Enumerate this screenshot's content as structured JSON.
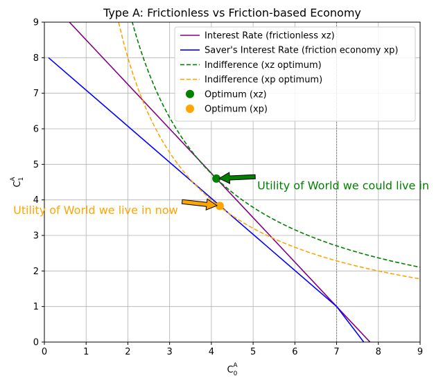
{
  "chart_data": {
    "type": "line",
    "title": "Type A: Frictionless vs Friction-based Economy",
    "xlabel_main": "C",
    "xlabel_sup": "A",
    "xlabel_sub": "0",
    "ylabel_main": "C",
    "ylabel_sup": "A",
    "ylabel_sub": "1",
    "xlim": [
      0,
      9
    ],
    "ylim": [
      0,
      9
    ],
    "xticks": [
      "0",
      "1",
      "2",
      "3",
      "4",
      "5",
      "6",
      "7",
      "8",
      "9"
    ],
    "yticks": [
      "0",
      "1",
      "2",
      "3",
      "4",
      "5",
      "6",
      "7",
      "8",
      "9"
    ],
    "grid": true,
    "legend_position": "top-right",
    "vertical_line_x": 7,
    "lines": [
      {
        "name": "Interest Rate (frictionless xz)",
        "color": "#800080",
        "style": "solid",
        "points": [
          [
            0.6,
            9.0
          ],
          [
            7.0,
            1.0
          ],
          [
            7.8,
            0.0
          ]
        ]
      },
      {
        "name": "Saver's Interest Rate (friction economy xp)",
        "color": "#0000ff",
        "style": "solid",
        "points": [
          [
            0.1,
            8.0
          ],
          [
            7.0,
            1.0
          ],
          [
            7.65,
            0.0
          ]
        ]
      },
      {
        "name": "Indifference (xz optimum)",
        "color": "#008000",
        "style": "dashed",
        "k": 18.95,
        "xrange": [
          2.1,
          9.0
        ]
      },
      {
        "name": "Indifference (xp optimum)",
        "color": "#ffa500",
        "style": "dashed",
        "k": 16.0,
        "xrange": [
          1.78,
          9.0
        ]
      }
    ],
    "points": [
      {
        "name": "Optimum (xz)",
        "color": "#008000",
        "x": 4.12,
        "y": 4.6
      },
      {
        "name": "Optimum (xp)",
        "color": "#ffa500",
        "x": 4.2,
        "y": 3.83
      }
    ],
    "annotations": [
      {
        "text": "Utility of World we could live in",
        "color": "#008000",
        "x": 5.1,
        "y": 4.3,
        "anchor": "start",
        "arrow_from": [
          5.05,
          4.65
        ],
        "arrow_to": [
          4.12,
          4.6
        ],
        "arrow_fill": "#008000"
      },
      {
        "text": "Utility of World we live in now",
        "color": "#ffa500",
        "x": 3.2,
        "y": 3.6,
        "anchor": "end",
        "arrow_from": [
          3.3,
          3.95
        ],
        "arrow_to": [
          4.2,
          3.83
        ],
        "arrow_fill": "#ffa500"
      }
    ]
  }
}
